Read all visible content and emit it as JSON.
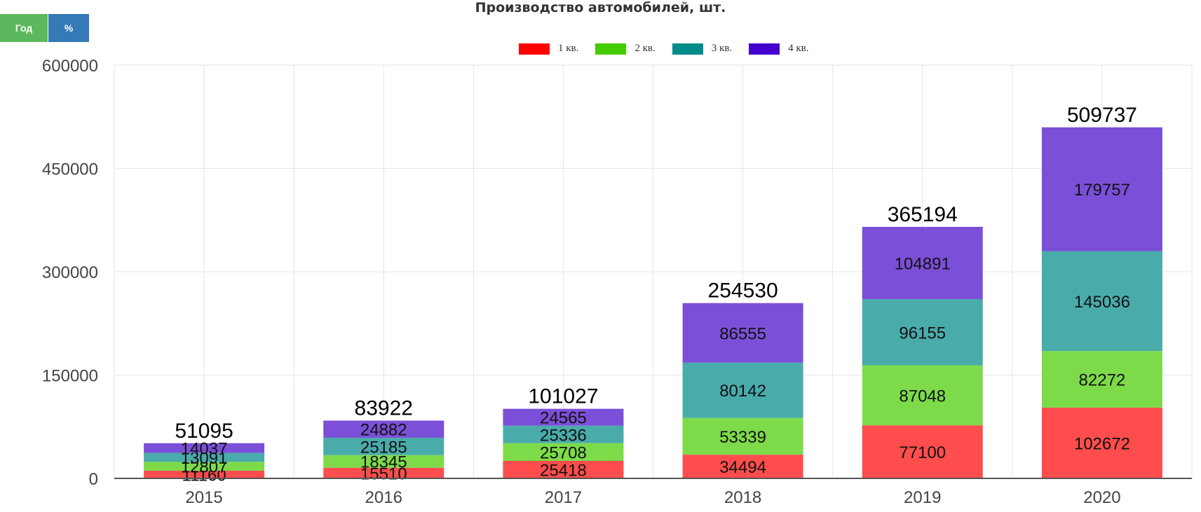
{
  "controls": {
    "year_label": "Год",
    "percent_label": "%"
  },
  "chart_data": {
    "type": "bar",
    "stacked": true,
    "title": "Производство автомобилей, шт.",
    "categories": [
      "2015",
      "2016",
      "2017",
      "2018",
      "2019",
      "2020"
    ],
    "series": [
      {
        "name": "1 кв.",
        "legend_color": "#ff0000",
        "color": "#ff4d4d",
        "values": [
          11160,
          15510,
          25418,
          34494,
          77100,
          102672
        ]
      },
      {
        "name": "2 кв.",
        "legend_color": "#44cc00",
        "color": "#7ddb4a",
        "values": [
          12807,
          18345,
          25708,
          53339,
          87048,
          82272
        ]
      },
      {
        "name": "3 кв.",
        "legend_color": "#008b8b",
        "color": "#4aabab",
        "values": [
          13091,
          25185,
          25336,
          80142,
          96155,
          145036
        ]
      },
      {
        "name": "4 кв.",
        "legend_color": "#4400cc",
        "color": "#7b4fd8",
        "values": [
          14037,
          24882,
          24565,
          86555,
          104891,
          179757
        ]
      }
    ],
    "totals": [
      51095,
      83922,
      101027,
      254530,
      365194,
      509737
    ],
    "yticks": [
      0,
      150000,
      300000,
      450000,
      600000
    ],
    "ylim": [
      0,
      600000
    ],
    "grid": true,
    "legend_position": "top-center"
  }
}
